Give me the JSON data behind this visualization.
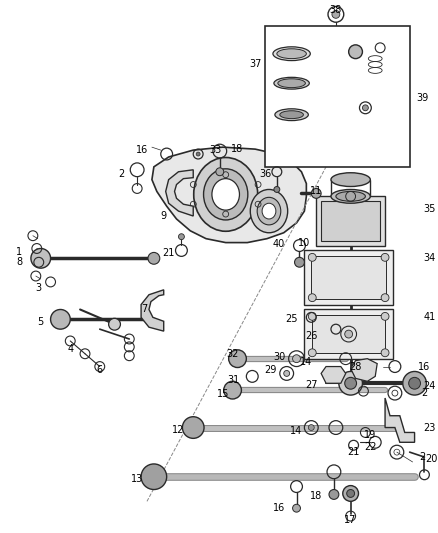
{
  "background_color": "#ffffff",
  "fig_width": 4.38,
  "fig_height": 5.33,
  "dpi": 100,
  "line_color": "#2a2a2a",
  "label_fontsize": 7.0
}
